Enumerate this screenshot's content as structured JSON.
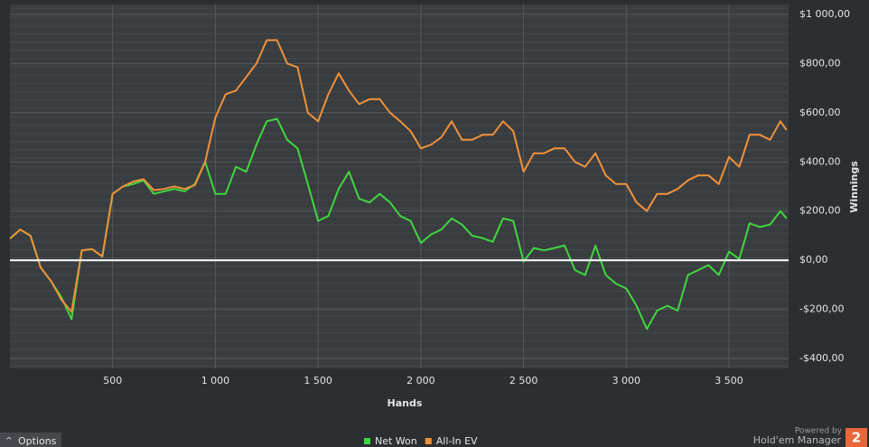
{
  "chart_data": {
    "type": "line",
    "x_label": "Hands",
    "y_label": "Winnings",
    "x": [
      0,
      50,
      100,
      150,
      200,
      250,
      300,
      350,
      400,
      450,
      500,
      550,
      600,
      650,
      700,
      750,
      800,
      850,
      900,
      950,
      1000,
      1050,
      1100,
      1150,
      1200,
      1250,
      1300,
      1350,
      1400,
      1450,
      1500,
      1550,
      1600,
      1650,
      1700,
      1750,
      1800,
      1850,
      1900,
      1950,
      2000,
      2050,
      2100,
      2150,
      2200,
      2250,
      2300,
      2350,
      2400,
      2450,
      2500,
      2550,
      2600,
      2650,
      2700,
      2750,
      2800,
      2850,
      2900,
      2950,
      3000,
      3050,
      3100,
      3150,
      3200,
      3250,
      3300,
      3350,
      3400,
      3450,
      3500,
      3550,
      3600,
      3650,
      3700,
      3750,
      3780
    ],
    "series": [
      {
        "name": "Net Won",
        "color": "#3fd63f",
        "values": [
          88,
          125,
          100,
          -30,
          -85,
          -150,
          -240,
          40,
          45,
          15,
          270,
          300,
          310,
          325,
          270,
          280,
          290,
          280,
          310,
          400,
          270,
          270,
          380,
          360,
          470,
          565,
          575,
          490,
          455,
          310,
          160,
          180,
          290,
          360,
          250,
          235,
          270,
          235,
          180,
          160,
          70,
          105,
          125,
          170,
          145,
          100,
          90,
          75,
          170,
          160,
          -5,
          50,
          40,
          50,
          60,
          -40,
          -60,
          60,
          -60,
          -95,
          -115,
          -185,
          -280,
          -205,
          -185,
          -205,
          -60,
          -40,
          -20,
          -60,
          35,
          5,
          150,
          135,
          145,
          200,
          170
        ]
      },
      {
        "name": "All-In EV",
        "color": "#f0913a",
        "values": [
          88,
          125,
          100,
          -30,
          -85,
          -160,
          -210,
          40,
          45,
          15,
          270,
          300,
          320,
          330,
          285,
          290,
          300,
          290,
          305,
          400,
          580,
          675,
          690,
          745,
          800,
          895,
          895,
          800,
          785,
          600,
          565,
          675,
          760,
          690,
          635,
          655,
          655,
          600,
          565,
          525,
          455,
          470,
          500,
          565,
          490,
          490,
          510,
          510,
          565,
          525,
          360,
          435,
          435,
          455,
          455,
          400,
          380,
          435,
          345,
          310,
          310,
          235,
          200,
          270,
          270,
          290,
          325,
          345,
          345,
          310,
          420,
          380,
          510,
          510,
          490,
          565,
          530
        ]
      }
    ],
    "xlim": [
      0,
      3790
    ],
    "ylim": [
      -440,
      1040
    ],
    "xticks": [
      500,
      {
        "value": 1000,
        "label": "1 000"
      },
      {
        "value": 1500,
        "label": "1 500"
      },
      {
        "value": 2000,
        "label": "2 000"
      },
      {
        "value": 2500,
        "label": "2 500"
      },
      {
        "value": 3000,
        "label": "3 000"
      },
      {
        "value": 3500,
        "label": "3 500"
      }
    ],
    "yticks": [
      {
        "value": -400,
        "label": "-$400,00"
      },
      {
        "value": -200,
        "label": "-$200,00"
      },
      {
        "value": 0,
        "label": "$0,00"
      },
      {
        "value": 200,
        "label": "$200,00"
      },
      {
        "value": 400,
        "label": "$400,00"
      },
      {
        "value": 600,
        "label": "$600,00"
      },
      {
        "value": 800,
        "label": "$800,00"
      },
      {
        "value": 1000,
        "label": "$1 000,00"
      }
    ],
    "grid": true
  },
  "ui": {
    "options_button": "Options",
    "powered_by": "Powered by",
    "brand": "Hold'em Manager",
    "brand_badge": "2"
  }
}
